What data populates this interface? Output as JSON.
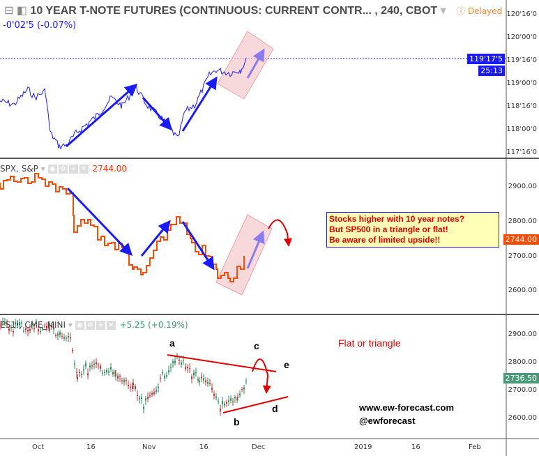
{
  "header": {
    "title": "10 YEAR T-NOTE FUTURES (CONTINUOUS: CURRENT CONTR... , 240, CBOT",
    "change": "-0'02'5 (-0.07%)",
    "status": "Delayed"
  },
  "pane1": {
    "axis": [
      "120'16'0",
      "120'00'0",
      "119'16'0",
      "119'00'0",
      "118'16'0",
      "118'00'0",
      "117'16'0"
    ],
    "price_tag": "119'17'5",
    "countdown": "25:13",
    "line_color": "#1a1aff"
  },
  "pane2": {
    "symbol": "SPX, S&P",
    "value": "2744.00",
    "axis": [
      "2900.00",
      "2800.00",
      "2700.00",
      "2600.00"
    ],
    "price_tag": "2744.00",
    "line_color": "#ff4a00"
  },
  "pane3": {
    "symbol": "ES1!, CME_MINI",
    "change": "+5.25 (+0.19%)",
    "axis": [
      "2900.00",
      "2800.00",
      "2700.00",
      "2600.00"
    ],
    "price_tag": "2736.50"
  },
  "time_axis": [
    "Oct",
    "16",
    "Nov",
    "16",
    "Dec",
    "2019",
    "16",
    "Feb"
  ],
  "annotations": {
    "note": [
      "Stocks higher with 10 year notes?",
      "But SP500 in a triangle or flat!",
      "Be aware of limited upside!!"
    ],
    "waves": [
      "a",
      "b",
      "c",
      "d",
      "e"
    ],
    "pattern": "Flat or triangle",
    "site": "www.ew-forecast.com",
    "handle": "@ewforecast"
  }
}
